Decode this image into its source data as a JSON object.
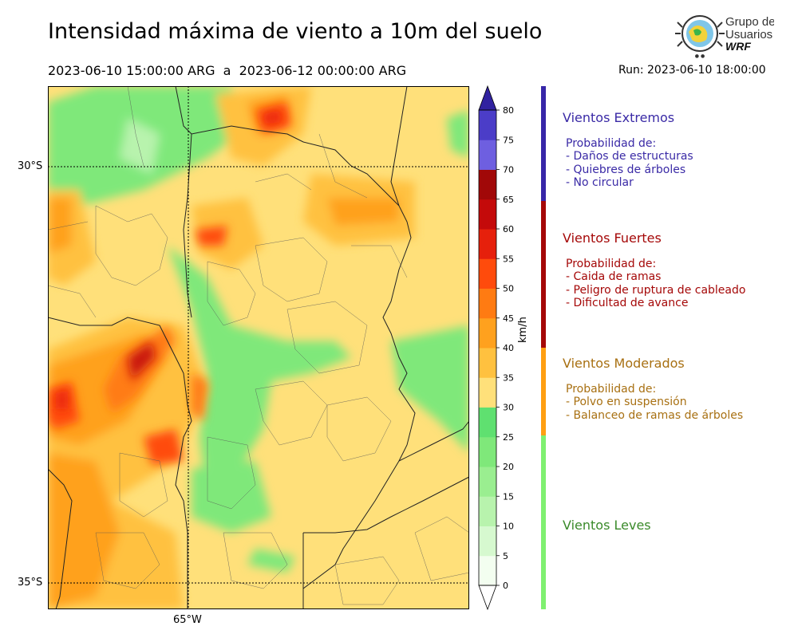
{
  "header": {
    "title": "Intensidad máxima de viento a 10m del suelo",
    "period": "2023-06-10 15:00:00 ARG  a  2023-06-12 00:00:00 ARG",
    "run": "Run: 2023-06-10 18:00:00"
  },
  "logo": {
    "line1": "Grupo de",
    "line2": "Usuarios",
    "line3": "WRF",
    "icon": "globe-wind-icon"
  },
  "map": {
    "lat_labels": [
      "30°S",
      "35°S"
    ],
    "lon_label": "65°W"
  },
  "colorbar": {
    "unit": "km/h",
    "ticks": [
      "0",
      "5",
      "10",
      "15",
      "20",
      "25",
      "30",
      "35",
      "40",
      "45",
      "50",
      "55",
      "60",
      "65",
      "70",
      "75",
      "80"
    ],
    "colors": [
      "#f3fef0",
      "#d6f9cf",
      "#b8f3ad",
      "#9aee90",
      "#7fe87a",
      "#5fe070",
      "#ffe07a",
      "#ffc13f",
      "#ffa11e",
      "#ff7b12",
      "#ff4b0c",
      "#e6200c",
      "#c40a0a",
      "#a10808",
      "#6e5fe0",
      "#4b3dc8",
      "#3a2aa6"
    ],
    "top_color": "#3122a0"
  },
  "categories": [
    {
      "title": "Vientos Extremos",
      "heading": "Probabilidad de:",
      "items": [
        "- Daños de estructuras",
        "- Quiebres de árboles",
        "- No circular"
      ],
      "color": "#3a2aa6",
      "bar": "#3727a8"
    },
    {
      "title": "Vientos Fuertes",
      "heading": "Probabilidad de:",
      "items": [
        "- Caida de ramas",
        "- Peligro de ruptura de cableado",
        "- Dificultad de avance"
      ],
      "color": "#a50808",
      "bar": "#a50808"
    },
    {
      "title": "Vientos Moderados",
      "heading": "Probabilidad de:",
      "items": [
        "- Polvo en suspensión",
        "- Balanceo de ramas de árboles"
      ],
      "color": "#a87012",
      "bar": "#ff9f12"
    },
    {
      "title": "Vientos Leves",
      "heading": "",
      "items": [],
      "color": "#3a8a2a",
      "bar": "#7ff070"
    }
  ]
}
